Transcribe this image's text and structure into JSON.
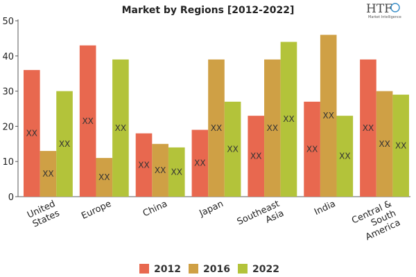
{
  "logo": {
    "brand": "HTF",
    "tagline": "Market Intelligence"
  },
  "chart_data": {
    "type": "bar",
    "title": "Market by Regions [2012-2022]",
    "categories": [
      "United States",
      "Europe",
      "China",
      "Japan",
      "Southeast Asia",
      "India",
      "Central & South America"
    ],
    "category_lines": [
      [
        "United",
        "States"
      ],
      [
        "Europe"
      ],
      [
        "China"
      ],
      [
        "Japan"
      ],
      [
        "Southeast",
        "Asia"
      ],
      [
        "India"
      ],
      [
        "Central &",
        "South",
        "America"
      ]
    ],
    "series": [
      {
        "name": "2012",
        "color": "#e8684f",
        "values": [
          36,
          43,
          18,
          19,
          23,
          27,
          39
        ]
      },
      {
        "name": "2016",
        "color": "#cfa045",
        "values": [
          13,
          11,
          15,
          39,
          39,
          46,
          30
        ]
      },
      {
        "name": "2022",
        "color": "#b3c33a",
        "values": [
          30,
          39,
          14,
          27,
          44,
          23,
          29
        ]
      }
    ],
    "data_label": "XX",
    "ylim": [
      0,
      50
    ],
    "yticks": [
      0,
      10,
      20,
      30,
      40,
      50
    ],
    "xlabel": "",
    "ylabel": "",
    "grid": false,
    "legend_position": "bottom"
  }
}
